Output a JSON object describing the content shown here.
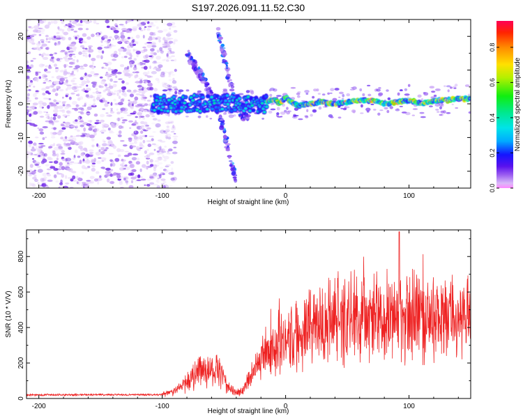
{
  "title": "S197.2026.091.11.52.C30",
  "chart_data": [
    {
      "type": "heatmap",
      "name": "spectrogram",
      "xlabel": "Height of straight line (km)",
      "ylabel": "Frequency (Hz)",
      "xlim": [
        -210,
        150
      ],
      "ylim": [
        -25,
        25
      ],
      "xticks": [
        -200,
        -100,
        0,
        100
      ],
      "yticks": [
        -20,
        -10,
        0,
        10,
        20
      ],
      "colorbar": {
        "label": "Normalized spectral amplitude",
        "range": [
          0,
          0.95
        ],
        "ticks": [
          0.0,
          0.2,
          0.4,
          0.6,
          0.8
        ]
      },
      "features": {
        "noise_region_km": [
          -210,
          -95
        ],
        "tone_start_km": -108,
        "tone_frequency_hz": 0,
        "tone_track_km": [
          -15,
          -10,
          -5,
          0,
          5,
          10,
          20,
          30,
          40,
          50,
          60,
          70,
          80,
          90,
          100,
          110,
          120,
          130,
          140,
          150
        ],
        "tone_track_hz": [
          0.5,
          1.5,
          0.0,
          2.0,
          0.5,
          -0.5,
          0.0,
          0.5,
          0.0,
          0.5,
          1.0,
          1.0,
          0.0,
          0.5,
          1.0,
          0.0,
          1.0,
          1.0,
          1.5,
          1.5
        ],
        "descending_branch_km": [
          -80,
          -75,
          -70,
          -65,
          -60,
          -55,
          -50,
          -45,
          -40
        ],
        "descending_branch_hz": [
          15,
          12,
          9,
          6,
          2,
          -2,
          -8,
          -16,
          -23
        ],
        "ascending_branch_km": [
          -55,
          -50,
          -45,
          -40,
          -35,
          -30
        ],
        "ascending_branch_hz": [
          22,
          14,
          6,
          0,
          -3,
          -4
        ]
      }
    },
    {
      "type": "line",
      "name": "snr",
      "xlabel": "Height of straight line (km)",
      "ylabel": "SNR (10 * V/V)",
      "xlim": [
        -210,
        150
      ],
      "ylim": [
        0,
        950
      ],
      "xticks": [
        -200,
        -100,
        0,
        100
      ],
      "yticks": [
        0,
        200,
        400,
        600,
        800
      ],
      "color": "#ee2222",
      "series": [
        {
          "name": "SNR mean",
          "x": [
            -210,
            -100,
            -90,
            -80,
            -70,
            -60,
            -55,
            -50,
            -45,
            -40,
            -35,
            -30,
            -25,
            -20,
            -15,
            -10,
            -5,
            0,
            10,
            20,
            30,
            40,
            50,
            60,
            70,
            80,
            90,
            100,
            110,
            120,
            130,
            140,
            150
          ],
          "y": [
            20,
            22,
            40,
            90,
            150,
            170,
            160,
            110,
            60,
            30,
            40,
            100,
            180,
            220,
            260,
            300,
            310,
            320,
            360,
            400,
            430,
            440,
            450,
            460,
            470,
            470,
            460,
            470,
            470,
            460,
            460,
            440,
            440
          ]
        }
      ],
      "peak": {
        "x": 92,
        "y": 940
      }
    }
  ]
}
